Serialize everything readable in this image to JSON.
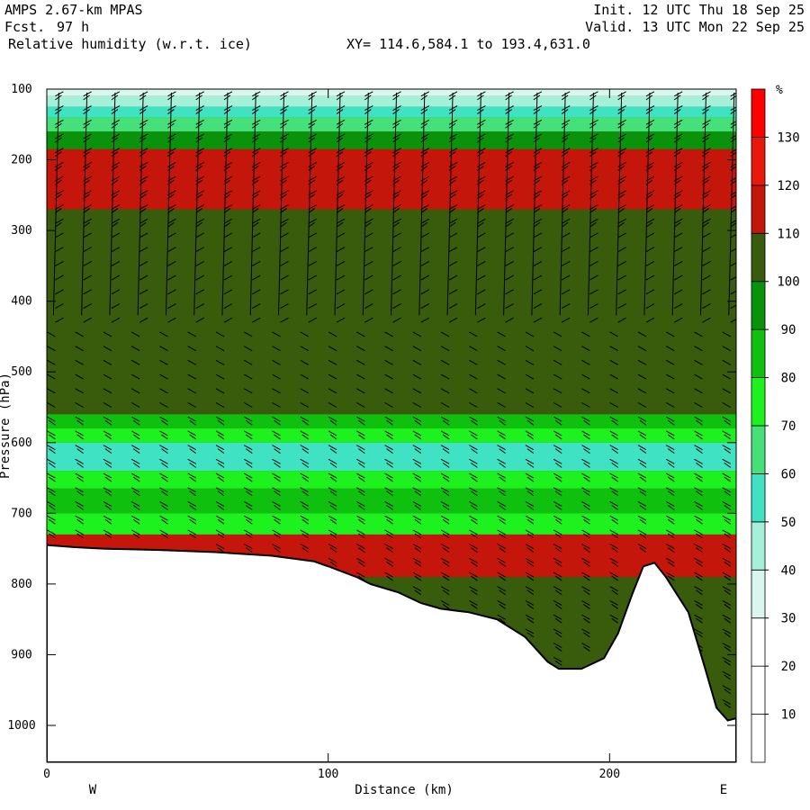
{
  "header": {
    "model": "AMPS 2.67-km MPAS",
    "fcst_label": "Fcst.",
    "fcst_value": "97 h",
    "field": "Relative humidity (w.r.t. ice)",
    "init": "Init. 12 UTC Thu 18 Sep 25",
    "valid": "Valid. 13 UTC Mon 22 Sep 25",
    "xy": "XY= 114.6,584.1 to 193.4,631.0"
  },
  "chart_data": {
    "type": "heatmap",
    "title": "Relative humidity (w.r.t. ice)",
    "xlabel": "Distance (km)",
    "ylabel": "Pressure (hPa)",
    "xlim": [
      0,
      245
    ],
    "ylim": [
      1050,
      100
    ],
    "x_ticks": [
      "0",
      "100",
      "200"
    ],
    "y_ticks": [
      "100",
      "200",
      "300",
      "400",
      "500",
      "600",
      "700",
      "800",
      "900",
      "1000"
    ],
    "x_tick_values": [
      0,
      100,
      200
    ],
    "y_tick_values": [
      100,
      200,
      300,
      400,
      500,
      600,
      700,
      800,
      900,
      1000
    ],
    "direction_labels": {
      "left": "W",
      "right": "E"
    },
    "colorbar": {
      "unit": "%",
      "levels": [
        10,
        20,
        30,
        40,
        50,
        60,
        70,
        80,
        90,
        100,
        110,
        120,
        130
      ],
      "labels": [
        "10",
        "20",
        "30",
        "40",
        "50",
        "60",
        "70",
        "80",
        "90",
        "100",
        "110",
        "120",
        "130"
      ],
      "colors": [
        "#ffffff",
        "#ffffff",
        "#ffffff",
        "#d9f7ee",
        "#a6efd9",
        "#3fe3c3",
        "#45e07a",
        "#1ef21e",
        "#0fc00f",
        "#0a930a",
        "#385b0c",
        "#c4160a",
        "#e8190a",
        "#ff0000"
      ]
    },
    "terrain_hpa": [
      [
        0,
        745
      ],
      [
        10,
        748
      ],
      [
        20,
        750
      ],
      [
        40,
        752
      ],
      [
        60,
        755
      ],
      [
        80,
        760
      ],
      [
        95,
        768
      ],
      [
        100,
        775
      ],
      [
        110,
        790
      ],
      [
        115,
        800
      ],
      [
        125,
        812
      ],
      [
        133,
        827
      ],
      [
        140,
        835
      ],
      [
        150,
        840
      ],
      [
        160,
        850
      ],
      [
        170,
        875
      ],
      [
        178,
        910
      ],
      [
        182,
        920
      ],
      [
        190,
        920
      ],
      [
        198,
        905
      ],
      [
        203,
        870
      ],
      [
        208,
        815
      ],
      [
        212,
        775
      ],
      [
        216,
        770
      ],
      [
        220,
        790
      ],
      [
        228,
        840
      ],
      [
        234,
        920
      ],
      [
        238,
        975
      ],
      [
        242,
        993
      ],
      [
        245,
        990
      ]
    ],
    "rh_layers": [
      {
        "p_top": 100,
        "p_bottom": 110,
        "rh": 30
      },
      {
        "p_top": 110,
        "p_bottom": 125,
        "rh": 45
      },
      {
        "p_top": 125,
        "p_bottom": 140,
        "rh": 55
      },
      {
        "p_top": 140,
        "p_bottom": 160,
        "rh": 65
      },
      {
        "p_top": 160,
        "p_bottom": 185,
        "rh": 95
      },
      {
        "p_top": 185,
        "p_bottom": 270,
        "rh": 115
      },
      {
        "p_top": 270,
        "p_bottom": 560,
        "rh": 105
      },
      {
        "p_top": 560,
        "p_bottom": 580,
        "rh": 85
      },
      {
        "p_top": 580,
        "p_bottom": 600,
        "rh": 70
      },
      {
        "p_top": 600,
        "p_bottom": 640,
        "rh": 55
      },
      {
        "p_top": 640,
        "p_bottom": 665,
        "rh": 75
      },
      {
        "p_top": 665,
        "p_bottom": 700,
        "rh": 85
      },
      {
        "p_top": 700,
        "p_bottom": 730,
        "rh": 75
      },
      {
        "p_top": 730,
        "p_bottom": 790,
        "rh": 115
      }
    ]
  }
}
